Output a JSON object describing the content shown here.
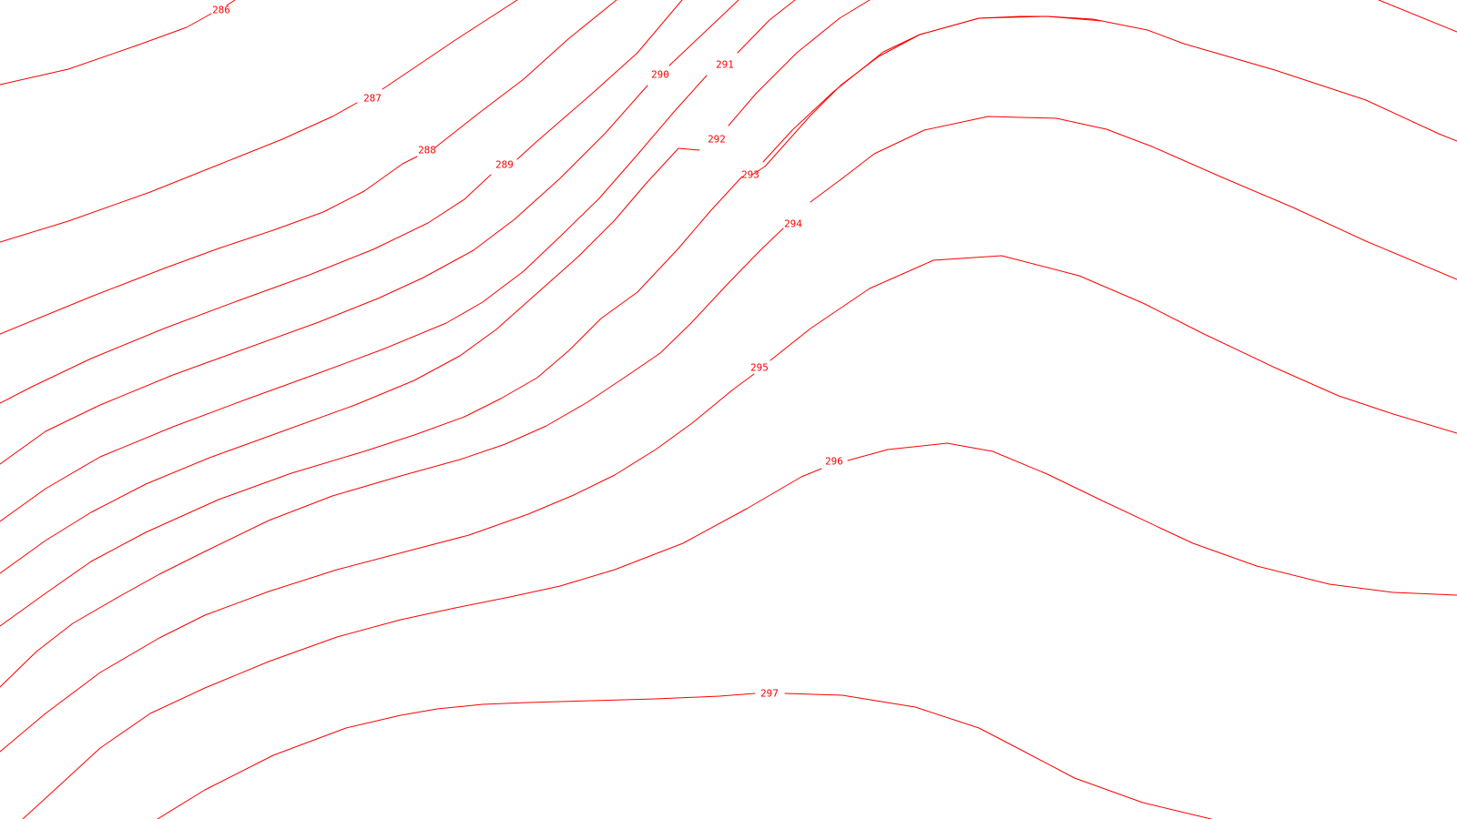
{
  "map": {
    "line_color": "#ff0000",
    "background_color": "#ffffff",
    "contours": [
      {
        "level": "286",
        "label": "286"
      },
      {
        "level": "287",
        "label": "287"
      },
      {
        "level": "288",
        "label": "288"
      },
      {
        "level": "289",
        "label": "289"
      },
      {
        "level": "290",
        "label": "290"
      },
      {
        "level": "291",
        "label": "291"
      },
      {
        "level": "292",
        "label": "292"
      },
      {
        "level": "293",
        "label": "293"
      },
      {
        "level": "294",
        "label": "294"
      },
      {
        "level": "295",
        "label": "295"
      },
      {
        "level": "296",
        "label": "296"
      },
      {
        "level": "297",
        "label": "297"
      }
    ]
  }
}
